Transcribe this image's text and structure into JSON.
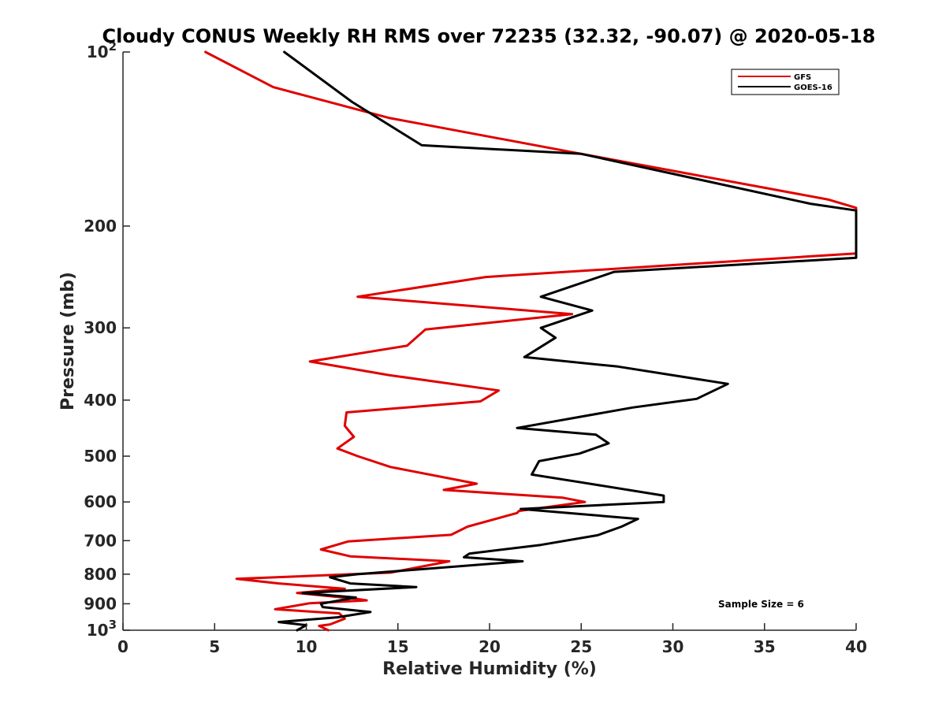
{
  "chart_data": {
    "type": "line",
    "title": "Cloudy CONUS Weekly RH RMS over 72235 (32.32, -90.07) @ 2020-05-18",
    "xlabel": "Relative Humidity (%)",
    "ylabel": "Pressure (mb)",
    "xlim": [
      0,
      40
    ],
    "ylim": [
      100,
      1000
    ],
    "yscale": "log",
    "yreversed": true,
    "grid": false,
    "x_ticks": [
      0,
      5,
      10,
      15,
      20,
      25,
      30,
      35,
      40
    ],
    "y_ticks": [
      {
        "value": 100,
        "base": "10",
        "exp": "2",
        "label": ""
      },
      {
        "value": 200,
        "label": "200"
      },
      {
        "value": 300,
        "label": "300"
      },
      {
        "value": 400,
        "label": "400"
      },
      {
        "value": 500,
        "label": "500"
      },
      {
        "value": 600,
        "label": "600"
      },
      {
        "value": 700,
        "label": "700"
      },
      {
        "value": 800,
        "label": "800"
      },
      {
        "value": 900,
        "label": "900"
      },
      {
        "value": 1000,
        "base": "10",
        "exp": "3",
        "label": ""
      }
    ],
    "legend_position": "top-right",
    "annotation": "Sample Size = 6",
    "series": [
      {
        "name": "GFS",
        "color": "#e00000",
        "points": [
          [
            4.5,
            100
          ],
          [
            8.2,
            115
          ],
          [
            14.5,
            130
          ],
          [
            25,
            150
          ],
          [
            38.5,
            180
          ],
          [
            40,
            186
          ],
          [
            40,
            223
          ],
          [
            19.8,
            245
          ],
          [
            12.8,
            265
          ],
          [
            24.5,
            284
          ],
          [
            16.5,
            302
          ],
          [
            15.5,
            322
          ],
          [
            10.2,
            343
          ],
          [
            14.5,
            362
          ],
          [
            20.5,
            385
          ],
          [
            19.5,
            402
          ],
          [
            12.2,
            420
          ],
          [
            12.1,
            443
          ],
          [
            12.6,
            463
          ],
          [
            11.7,
            485
          ],
          [
            12.8,
            500
          ],
          [
            14.6,
            522
          ],
          [
            19.3,
            558
          ],
          [
            17.5,
            572
          ],
          [
            24,
            590
          ],
          [
            25.2,
            600
          ],
          [
            21.6,
            622
          ],
          [
            21.5,
            627
          ],
          [
            18.8,
            662
          ],
          [
            17.9,
            684
          ],
          [
            12.3,
            702
          ],
          [
            10.8,
            725
          ],
          [
            12.4,
            745
          ],
          [
            17.8,
            760
          ],
          [
            14.6,
            795
          ],
          [
            6.2,
            815
          ],
          [
            8.5,
            830
          ],
          [
            12.1,
            848
          ],
          [
            9.5,
            862
          ],
          [
            12.7,
            882
          ],
          [
            13.3,
            888
          ],
          [
            10.2,
            898
          ],
          [
            8.3,
            920
          ],
          [
            11.8,
            935
          ],
          [
            12.1,
            955
          ],
          [
            11.3,
            977
          ],
          [
            10.7,
            983
          ],
          [
            11.2,
            1000
          ]
        ]
      },
      {
        "name": "GOES-16",
        "color": "#000000",
        "points": [
          [
            8.8,
            100
          ],
          [
            12.5,
            122
          ],
          [
            16.3,
            145
          ],
          [
            25,
            150
          ],
          [
            37.5,
            183
          ],
          [
            40,
            188
          ],
          [
            40,
            227
          ],
          [
            26.8,
            240
          ],
          [
            22.8,
            265
          ],
          [
            25.6,
            280
          ],
          [
            22.8,
            300
          ],
          [
            23.6,
            312
          ],
          [
            21.9,
            337
          ],
          [
            27,
            350
          ],
          [
            33,
            375
          ],
          [
            31.3,
            398
          ],
          [
            27.8,
            412
          ],
          [
            21.5,
            447
          ],
          [
            25.8,
            459
          ],
          [
            26.5,
            475
          ],
          [
            24.9,
            495
          ],
          [
            22.7,
            510
          ],
          [
            22.3,
            538
          ],
          [
            25,
            555
          ],
          [
            29.5,
            585
          ],
          [
            29.5,
            600
          ],
          [
            21.7,
            617
          ],
          [
            28.1,
            642
          ],
          [
            27.2,
            662
          ],
          [
            25.9,
            685
          ],
          [
            22.8,
            712
          ],
          [
            18.9,
            737
          ],
          [
            18.6,
            748
          ],
          [
            21.8,
            760
          ],
          [
            12.8,
            800
          ],
          [
            11.3,
            810
          ],
          [
            12.4,
            830
          ],
          [
            16,
            842
          ],
          [
            9.8,
            862
          ],
          [
            12.7,
            878
          ],
          [
            10.8,
            900
          ],
          [
            10.9,
            912
          ],
          [
            13.5,
            930
          ],
          [
            11.7,
            950
          ],
          [
            8.5,
            968
          ],
          [
            10,
            980
          ],
          [
            9.5,
            1000
          ]
        ]
      }
    ]
  }
}
